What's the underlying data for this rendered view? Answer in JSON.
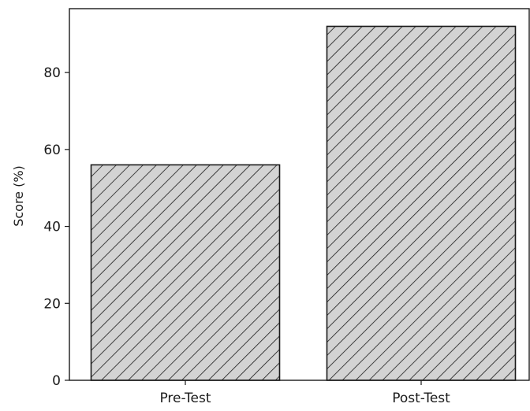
{
  "chart_data": {
    "type": "bar",
    "title": "",
    "xlabel": "",
    "ylabel": "Score (%)",
    "categories": [
      "Pre-Test",
      "Post-Test"
    ],
    "values": [
      56,
      92
    ],
    "ylim": [
      0,
      96.6
    ],
    "yticks": [
      0,
      20,
      40,
      60,
      80
    ],
    "grid": false,
    "legend": "none",
    "bar_fill": "#d3d3d3",
    "bar_edge": "#1a1a1a",
    "bar_hatch": "diagonal",
    "axis_color": "#1a1a1a"
  }
}
